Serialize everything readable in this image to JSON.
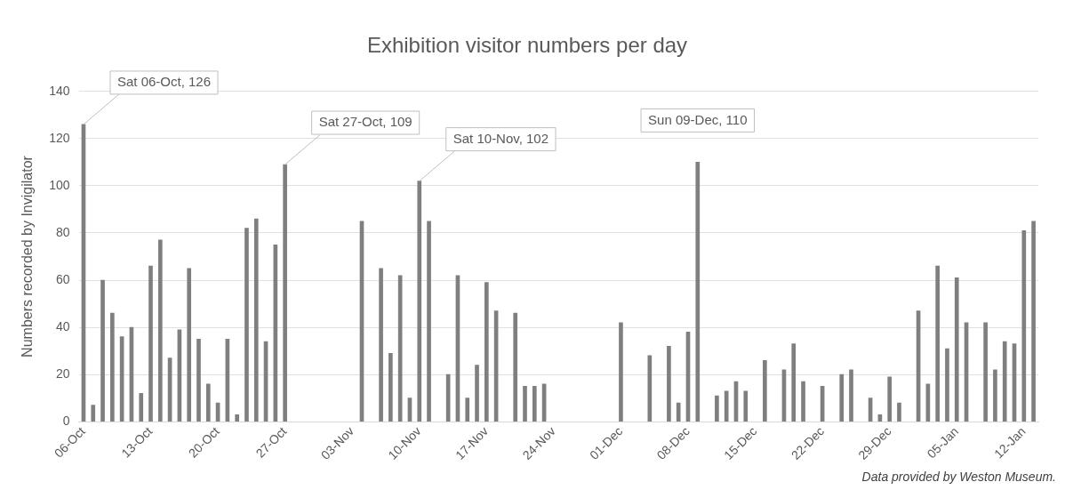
{
  "chart_data": {
    "type": "bar",
    "title": "Exhibition visitor numbers per day",
    "ylabel": "Numbers recorded by Invigilator",
    "categories": [
      "06-Oct",
      null,
      null,
      null,
      null,
      null,
      null,
      "13-Oct",
      null,
      null,
      null,
      null,
      null,
      null,
      "20-Oct",
      null,
      null,
      null,
      null,
      null,
      null,
      "27-Oct",
      null,
      null,
      null,
      null,
      null,
      null,
      "03-Nov",
      null,
      null,
      null,
      null,
      null,
      null,
      "10-Nov",
      null,
      null,
      null,
      null,
      null,
      null,
      "17-Nov",
      null,
      null,
      null,
      null,
      null,
      null,
      "24-Nov",
      null,
      null,
      null,
      null,
      null,
      null,
      "01-Dec",
      null,
      null,
      null,
      null,
      null,
      null,
      "08-Dec",
      null,
      null,
      null,
      null,
      null,
      null,
      "15-Dec",
      null,
      null,
      null,
      null,
      null,
      null,
      "22-Dec",
      null,
      null,
      null,
      null,
      null,
      null,
      "29-Dec",
      null,
      null,
      null,
      null,
      null,
      null,
      "05-Jan",
      null,
      null,
      null,
      null,
      null,
      null,
      "12-Jan",
      null
    ],
    "values": [
      126,
      7,
      60,
      46,
      36,
      40,
      12,
      66,
      77,
      27,
      39,
      65,
      35,
      16,
      8,
      35,
      3,
      82,
      86,
      34,
      75,
      109,
      null,
      null,
      null,
      null,
      null,
      null,
      null,
      85,
      null,
      65,
      29,
      62,
      10,
      102,
      85,
      null,
      20,
      62,
      10,
      24,
      59,
      47,
      null,
      46,
      15,
      15,
      16,
      null,
      null,
      null,
      null,
      null,
      null,
      null,
      42,
      null,
      null,
      28,
      null,
      32,
      8,
      38,
      110,
      null,
      11,
      13,
      17,
      13,
      null,
      26,
      null,
      22,
      33,
      17,
      null,
      15,
      null,
      20,
      22,
      null,
      10,
      3,
      19,
      8,
      null,
      47,
      16,
      66,
      31,
      61,
      42,
      null,
      42,
      22,
      34,
      33,
      81,
      85
    ],
    "color": "#7f7f7f",
    "ylim": [
      0,
      140
    ],
    "yticks": [
      0,
      20,
      40,
      60,
      80,
      100,
      120,
      140
    ],
    "grid": "y",
    "annotations": [
      {
        "text": "Sat 06-Oct, 126",
        "x": "06-Oct",
        "y": 126
      },
      {
        "text": "Sat 27-Oct, 109",
        "x": "27-Oct",
        "y": 109
      },
      {
        "text": "Sat 10-Nov, 102",
        "x": "10-Nov",
        "y": 102
      },
      "Sun 09-Dec, 110",
      "Data provided by Weston Museum."
    ]
  }
}
